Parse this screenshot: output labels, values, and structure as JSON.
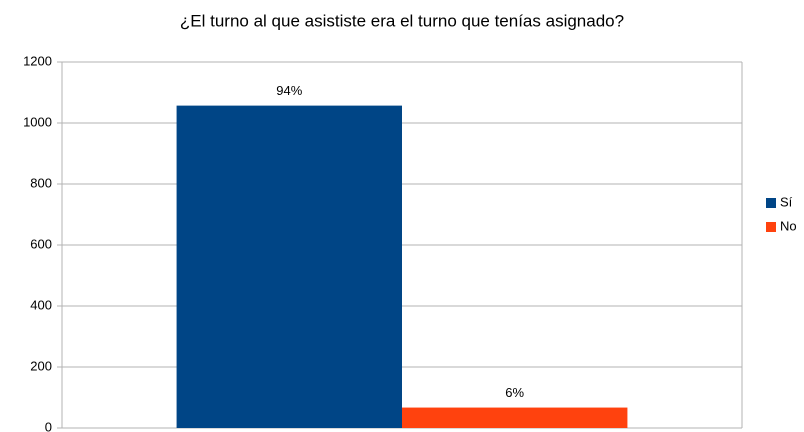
{
  "chart_data": {
    "type": "bar",
    "title": "¿El turno al que asististe era el turno que tenías asignado?",
    "categories": [
      null
    ],
    "series": [
      {
        "name": "Sí",
        "color": "#004586",
        "values": [
          1057
        ],
        "value_labels": [
          "94%"
        ]
      },
      {
        "name": "No",
        "color": "#ff420e",
        "values": [
          67
        ],
        "value_labels": [
          "6%"
        ]
      }
    ],
    "ylim": [
      0,
      1200
    ],
    "yticks": [
      0,
      200,
      400,
      600,
      800,
      1000,
      1200
    ],
    "grid": true,
    "legend": "right"
  }
}
